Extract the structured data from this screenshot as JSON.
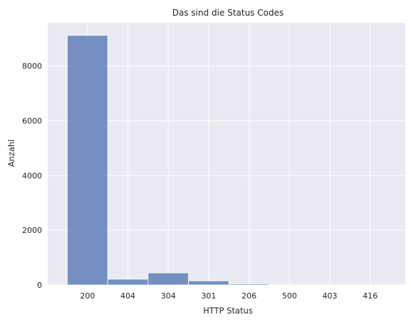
{
  "chart_data": {
    "type": "bar",
    "title": "Das sind die Status Codes",
    "xlabel": "HTTP Status",
    "ylabel": "Anzahl",
    "categories": [
      "200",
      "404",
      "304",
      "301",
      "206",
      "500",
      "403",
      "416"
    ],
    "values": [
      9120,
      210,
      440,
      150,
      40,
      10,
      5,
      5
    ],
    "ylim": [
      0,
      9580
    ],
    "yticks": [
      0,
      2000,
      4000,
      6000,
      8000
    ],
    "grid": true,
    "colors": {
      "background": "#eaeaf2",
      "grid": "#ffffff",
      "bar": "#4c72b0",
      "bar_opacity": 0.75,
      "text": "#262626"
    }
  }
}
